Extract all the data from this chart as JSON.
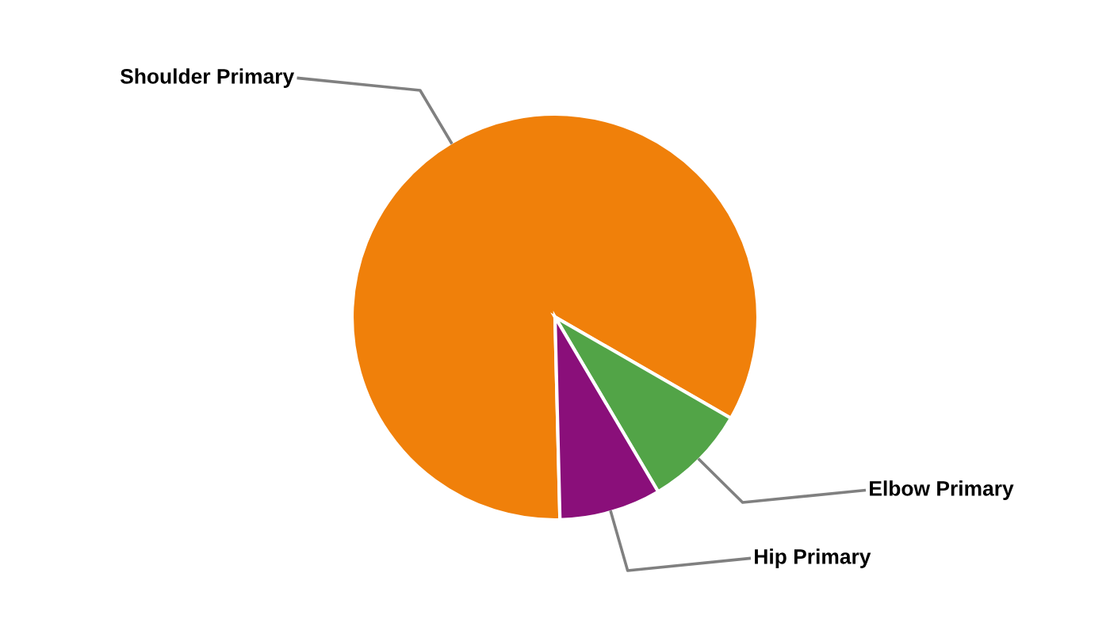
{
  "chart_data": {
    "type": "pie",
    "categories": [
      "Shoulder Primary",
      "Elbow Primary",
      "Hip Primary"
    ],
    "values": [
      83.7,
      8.2,
      8.1
    ],
    "colors": [
      "#f0800a",
      "#52a447",
      "#8a0f7a"
    ]
  }
}
